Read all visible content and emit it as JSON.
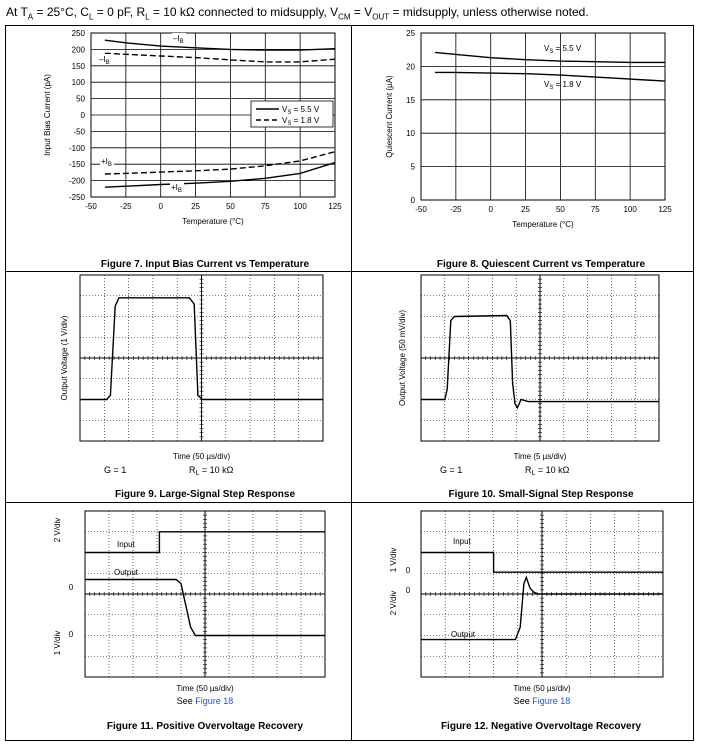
{
  "header": {
    "condition_prefix": "At T",
    "condition_sub_a": "A",
    "condition_mid1": " = 25°C, C",
    "condition_sub_l": "L",
    "condition_mid2": " = 0 pF, R",
    "condition_sub_l2": "L",
    "condition_mid3": " = 10 kΩ connected to midsupply, V",
    "condition_sub_cm": "CM",
    "condition_mid4": " = V",
    "condition_sub_out": "OUT",
    "condition_end": " = midsupply, unless otherwise noted."
  },
  "colors": {
    "link": "#1f55c8",
    "ink": "#000000"
  },
  "chart_data": [
    {
      "type": "line",
      "figure": "Figure 7. Input Bias Current vs Temperature",
      "xlabel": "Temperature (°C)",
      "ylabel": "Input Bias Current (pA)",
      "xlim": [
        -50,
        125
      ],
      "ylim": [
        -250,
        250
      ],
      "xticks": [
        "-50",
        "-25",
        "0",
        "25",
        "50",
        "75",
        "100",
        "125"
      ],
      "yticks": [
        "250",
        "200",
        "150",
        "100",
        "50",
        "0",
        "-50",
        "-100",
        "-150",
        "-200",
        "-250"
      ],
      "legend": {
        "position": "right",
        "entries": [
          "V",
          "V"
        ],
        "entry_texts": [
          "= 5.5 V",
          "= 1.8 V"
        ],
        "entry_sub": "S"
      },
      "annotations": [
        {
          "text": "–I",
          "sub": "B"
        },
        {
          "text": "–I",
          "sub": "B"
        },
        {
          "text": "+I",
          "sub": "B"
        },
        {
          "text": "+I",
          "sub": "B"
        }
      ],
      "series": [
        {
          "name": "-IB VS=5.5V",
          "style": "solid",
          "x": [
            -40,
            -25,
            0,
            25,
            50,
            75,
            100,
            125
          ],
          "y": [
            228,
            220,
            210,
            205,
            200,
            198,
            198,
            202
          ]
        },
        {
          "name": "-IB VS=1.8V",
          "style": "dashed",
          "x": [
            -40,
            -25,
            0,
            25,
            50,
            75,
            100,
            125
          ],
          "y": [
            188,
            185,
            180,
            175,
            168,
            162,
            162,
            170
          ]
        },
        {
          "name": "+IB VS=5.5V",
          "style": "solid",
          "x": [
            -40,
            -25,
            0,
            25,
            50,
            75,
            100,
            125
          ],
          "y": [
            -220,
            -217,
            -212,
            -208,
            -202,
            -193,
            -178,
            -145
          ]
        },
        {
          "name": "+IB VS=1.8V",
          "style": "dashed",
          "x": [
            -40,
            -25,
            0,
            25,
            50,
            75,
            100,
            125
          ],
          "y": [
            -180,
            -178,
            -174,
            -170,
            -165,
            -155,
            -140,
            -112
          ]
        }
      ]
    },
    {
      "type": "line",
      "figure": "Figure 8. Quiescent Current vs Temperature",
      "xlabel": "Temperature (°C)",
      "ylabel": "Quiescent Current (µA)",
      "xlim": [
        -50,
        125
      ],
      "ylim": [
        0,
        25
      ],
      "xticks": [
        "-50",
        "-25",
        "0",
        "25",
        "50",
        "75",
        "100",
        "125"
      ],
      "yticks": [
        "25",
        "20",
        "15",
        "10",
        "5",
        "0"
      ],
      "annotations": [
        {
          "text": "V",
          "sub": "S",
          "rest": " = 5.5 V"
        },
        {
          "text": "V",
          "sub": "S",
          "rest": " = 1.8 V"
        }
      ],
      "series": [
        {
          "name": "VS=5.5V",
          "x": [
            -40,
            -25,
            0,
            25,
            50,
            75,
            100,
            125
          ],
          "y": [
            22.1,
            21.8,
            21.3,
            21.0,
            20.8,
            20.7,
            20.6,
            20.6
          ]
        },
        {
          "name": "VS=1.8V",
          "x": [
            -40,
            -25,
            0,
            25,
            50,
            75,
            100,
            125
          ],
          "y": [
            19.1,
            19.1,
            19.0,
            18.9,
            18.7,
            18.4,
            18.1,
            17.8
          ]
        }
      ]
    },
    {
      "type": "line",
      "figure": "Figure 9. Large-Signal Step Response",
      "xlabel": "Time (50 µs/div)",
      "ylabel": "Output Voltage (1 V/div)",
      "xlim": [
        0,
        10
      ],
      "ylim": [
        -4,
        4
      ],
      "notes": {
        "gain": "G = 1",
        "load_prefix": "R",
        "load_sub": "L",
        "load_rest": " = 10 kΩ"
      },
      "series": [
        {
          "name": "Output",
          "x": [
            0,
            1.1,
            1.25,
            1.45,
            1.6,
            4.5,
            4.7,
            4.85,
            5.05,
            10
          ],
          "y": [
            -2,
            -2,
            -1.8,
            2.5,
            2.9,
            2.9,
            2.6,
            -1.8,
            -2,
            -2
          ]
        }
      ]
    },
    {
      "type": "line",
      "figure": "Figure 10. Small-Signal Step Response",
      "xlabel": "Time (5 µs/div)",
      "ylabel": "Output Voltage (50 mV/div)",
      "xlim": [
        0,
        10
      ],
      "ylim": [
        -4,
        4
      ],
      "notes": {
        "gain": "G = 1",
        "load_prefix": "R",
        "load_sub": "L",
        "load_rest": " = 10 kΩ"
      },
      "series": [
        {
          "name": "Output",
          "x": [
            0,
            1.0,
            1.1,
            1.25,
            1.4,
            3.6,
            3.75,
            3.85,
            3.95,
            4.05,
            4.2,
            4.5,
            10
          ],
          "y": [
            -2,
            -2,
            -1.5,
            1.8,
            2.0,
            2.05,
            1.8,
            -1.2,
            -2.2,
            -2.4,
            -2.0,
            -2.1,
            -2.1
          ]
        }
      ]
    },
    {
      "type": "line",
      "figure": "Figure 11. Positive Overvoltage Recovery",
      "xlabel": "Time (50 µs/div)",
      "note": "See",
      "link": "Figure 18",
      "xlim": [
        0,
        10
      ],
      "ylim": [
        -4,
        4
      ],
      "scale_labels": [
        "2 V/div",
        "0",
        "1 V/div",
        "0"
      ],
      "series_labels": [
        "Input",
        "Output"
      ],
      "series": [
        {
          "name": "Input",
          "x": [
            0,
            3.1,
            3.1,
            10
          ],
          "y": [
            2.0,
            2.0,
            3.0,
            3.0
          ]
        },
        {
          "name": "Output",
          "x": [
            0,
            3.8,
            4.0,
            4.4,
            4.6,
            10
          ],
          "y": [
            0.7,
            0.7,
            0.5,
            -1.6,
            -2.0,
            -2.0
          ]
        }
      ]
    },
    {
      "type": "line",
      "figure": "Figure 12. Negative Overvoltage Recovery",
      "xlabel": "Time (50 µs/div)",
      "note": "See",
      "link": "Figure 18",
      "xlim": [
        0,
        10
      ],
      "ylim": [
        -4,
        4
      ],
      "scale_labels": [
        "1 V/div",
        "0",
        "2 V/div",
        "0"
      ],
      "series_labels": [
        "Input",
        "Output"
      ],
      "series": [
        {
          "name": "Input",
          "x": [
            0,
            3.0,
            3.0,
            10
          ],
          "y": [
            2.0,
            2.0,
            1.05,
            1.05
          ]
        },
        {
          "name": "Output",
          "x": [
            0,
            3.9,
            4.1,
            4.25,
            4.35,
            4.5,
            4.65,
            4.8,
            10
          ],
          "y": [
            -2.2,
            -2.2,
            -1.6,
            0.5,
            0.8,
            0.3,
            0.1,
            0.0,
            0.0
          ]
        }
      ]
    }
  ]
}
